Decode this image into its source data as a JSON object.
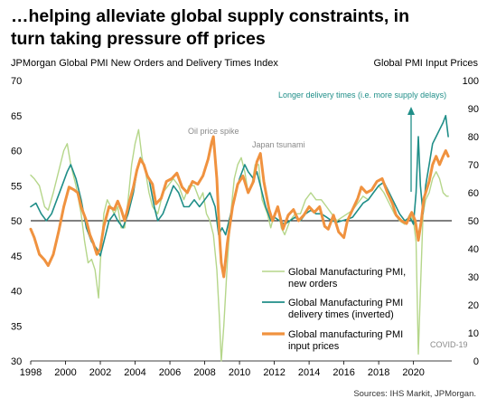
{
  "headline": {
    "line1": "…helping alleviate global supply constraints, in",
    "line2": "turn taking pressure off prices"
  },
  "left_axis_title": "JPMorgan Global PMI New Orders and Delivery Times Index",
  "right_axis_title": "Global PMI Input Prices",
  "source": "Sources: IHS Markit, JPMorgan.",
  "colors": {
    "new_orders": "#b5d68a",
    "delivery_times": "#1f8e88",
    "input_prices": "#f0923f",
    "annotation_grey": "#8a8a8a",
    "annotation_teal": "#1f8e88"
  },
  "chart_data": {
    "type": "line",
    "x_ticks": [
      "1998",
      "2000",
      "2002",
      "2004",
      "2006",
      "2008",
      "2010",
      "2012",
      "2014",
      "2016",
      "2018",
      "2020"
    ],
    "xlim": [
      1998,
      2022.2
    ],
    "ylim_left": [
      30,
      70
    ],
    "yticks_left": [
      "30",
      "35",
      "40",
      "45",
      "50",
      "55",
      "60",
      "65",
      "70"
    ],
    "ylim_right": [
      0,
      100
    ],
    "yticks_right": [
      "0",
      "10",
      "20",
      "30",
      "40",
      "50",
      "60",
      "70",
      "80",
      "90",
      "100"
    ],
    "reference_line": 50,
    "annotations": {
      "oil": "Oil price spike",
      "japan": "Japan tsunami",
      "longer": "Longer delivery times  (i.e. more supply delays)",
      "covid": "COVID-19"
    },
    "legend": [
      {
        "label1": "Global Manufacturing PMI,",
        "label2": "new orders"
      },
      {
        "label1": "Global Manufacturing PMI",
        "label2": "delivery times (inverted)"
      },
      {
        "label1": "Global manufacturing PMI",
        "label2": "input prices"
      }
    ],
    "series": [
      {
        "name": "Global Manufacturing PMI, new orders",
        "axis": "left",
        "points": [
          [
            1998.0,
            56.5
          ],
          [
            1998.2,
            56
          ],
          [
            1998.5,
            55
          ],
          [
            1998.8,
            52
          ],
          [
            1999.0,
            51.5
          ],
          [
            1999.3,
            54
          ],
          [
            1999.6,
            57
          ],
          [
            1999.9,
            60
          ],
          [
            2000.1,
            61
          ],
          [
            2000.3,
            58
          ],
          [
            2000.6,
            55
          ],
          [
            2000.9,
            51
          ],
          [
            2001.1,
            47
          ],
          [
            2001.3,
            44
          ],
          [
            2001.5,
            44.5
          ],
          [
            2001.7,
            43
          ],
          [
            2001.9,
            39
          ],
          [
            2002.0,
            44
          ],
          [
            2002.2,
            51
          ],
          [
            2002.4,
            53
          ],
          [
            2002.6,
            52
          ],
          [
            2002.8,
            51
          ],
          [
            2003.0,
            52
          ],
          [
            2003.2,
            49
          ],
          [
            2003.4,
            49
          ],
          [
            2003.6,
            53
          ],
          [
            2003.8,
            58
          ],
          [
            2004.0,
            61
          ],
          [
            2004.2,
            63
          ],
          [
            2004.4,
            59
          ],
          [
            2004.6,
            57
          ],
          [
            2004.8,
            54
          ],
          [
            2005.0,
            52
          ],
          [
            2005.3,
            51
          ],
          [
            2005.6,
            54
          ],
          [
            2005.9,
            55
          ],
          [
            2006.2,
            56
          ],
          [
            2006.5,
            55
          ],
          [
            2006.8,
            53
          ],
          [
            2007.1,
            55
          ],
          [
            2007.4,
            55
          ],
          [
            2007.7,
            53
          ],
          [
            2007.9,
            54
          ],
          [
            2008.1,
            51
          ],
          [
            2008.3,
            50
          ],
          [
            2008.5,
            48
          ],
          [
            2008.7,
            43
          ],
          [
            2008.85,
            36
          ],
          [
            2008.95,
            30
          ],
          [
            2009.1,
            35
          ],
          [
            2009.3,
            44
          ],
          [
            2009.5,
            51
          ],
          [
            2009.7,
            56
          ],
          [
            2009.9,
            58
          ],
          [
            2010.1,
            59
          ],
          [
            2010.3,
            57
          ],
          [
            2010.5,
            54
          ],
          [
            2010.7,
            55
          ],
          [
            2010.9,
            58
          ],
          [
            2011.1,
            58
          ],
          [
            2011.3,
            53
          ],
          [
            2011.6,
            51
          ],
          [
            2011.8,
            49
          ],
          [
            2012.0,
            51
          ],
          [
            2012.2,
            52
          ],
          [
            2012.4,
            49
          ],
          [
            2012.6,
            48
          ],
          [
            2012.9,
            50
          ],
          [
            2013.2,
            51
          ],
          [
            2013.5,
            51
          ],
          [
            2013.8,
            53
          ],
          [
            2014.1,
            54
          ],
          [
            2014.4,
            53
          ],
          [
            2014.7,
            53
          ],
          [
            2015.0,
            52
          ],
          [
            2015.3,
            51
          ],
          [
            2015.6,
            50
          ],
          [
            2015.9,
            50.5
          ],
          [
            2016.2,
            51
          ],
          [
            2016.5,
            51.5
          ],
          [
            2016.8,
            52.5
          ],
          [
            2017.1,
            53.5
          ],
          [
            2017.4,
            53
          ],
          [
            2017.7,
            54
          ],
          [
            2018.0,
            55
          ],
          [
            2018.3,
            54
          ],
          [
            2018.6,
            52.5
          ],
          [
            2018.9,
            51
          ],
          [
            2019.2,
            50
          ],
          [
            2019.5,
            49.5
          ],
          [
            2019.8,
            51
          ],
          [
            2020.0,
            50
          ],
          [
            2020.15,
            47
          ],
          [
            2020.28,
            31
          ],
          [
            2020.4,
            40
          ],
          [
            2020.55,
            51
          ],
          [
            2020.7,
            53
          ],
          [
            2020.9,
            54
          ],
          [
            2021.1,
            56
          ],
          [
            2021.3,
            57
          ],
          [
            2021.5,
            56
          ],
          [
            2021.7,
            54
          ],
          [
            2021.9,
            53.5
          ],
          [
            2022.0,
            53.5
          ]
        ]
      },
      {
        "name": "Global Manufacturing PMI delivery times (inverted)",
        "axis": "left",
        "points": [
          [
            1998.0,
            52
          ],
          [
            1998.3,
            52.5
          ],
          [
            1998.6,
            51
          ],
          [
            1998.9,
            50
          ],
          [
            1999.2,
            51
          ],
          [
            1999.5,
            53
          ],
          [
            1999.8,
            55
          ],
          [
            2000.1,
            57
          ],
          [
            2000.3,
            58
          ],
          [
            2000.6,
            56
          ],
          [
            2000.9,
            53
          ],
          [
            2001.2,
            49
          ],
          [
            2001.5,
            47
          ],
          [
            2001.8,
            46
          ],
          [
            2002.0,
            45
          ],
          [
            2002.2,
            47
          ],
          [
            2002.5,
            50
          ],
          [
            2002.8,
            51
          ],
          [
            2003.0,
            50
          ],
          [
            2003.3,
            49
          ],
          [
            2003.6,
            51
          ],
          [
            2003.9,
            54
          ],
          [
            2004.1,
            57
          ],
          [
            2004.3,
            59
          ],
          [
            2004.5,
            58
          ],
          [
            2004.8,
            56
          ],
          [
            2005.1,
            52
          ],
          [
            2005.3,
            50
          ],
          [
            2005.6,
            51
          ],
          [
            2005.9,
            53
          ],
          [
            2006.2,
            55
          ],
          [
            2006.5,
            54
          ],
          [
            2006.8,
            52
          ],
          [
            2007.1,
            52
          ],
          [
            2007.4,
            53
          ],
          [
            2007.7,
            52
          ],
          [
            2008.0,
            53
          ],
          [
            2008.3,
            54
          ],
          [
            2008.6,
            52
          ],
          [
            2008.8,
            48
          ],
          [
            2009.0,
            49
          ],
          [
            2009.2,
            48
          ],
          [
            2009.4,
            50
          ],
          [
            2009.7,
            53
          ],
          [
            2010.0,
            56
          ],
          [
            2010.3,
            58
          ],
          [
            2010.5,
            57
          ],
          [
            2010.8,
            56
          ],
          [
            2011.0,
            57
          ],
          [
            2011.2,
            55
          ],
          [
            2011.5,
            52
          ],
          [
            2011.8,
            50
          ],
          [
            2012.0,
            50.5
          ],
          [
            2012.3,
            50
          ],
          [
            2012.6,
            49.5
          ],
          [
            2012.9,
            50
          ],
          [
            2013.2,
            50.5
          ],
          [
            2013.5,
            50
          ],
          [
            2013.8,
            51
          ],
          [
            2014.1,
            51.5
          ],
          [
            2014.4,
            51
          ],
          [
            2014.7,
            51
          ],
          [
            2015.0,
            50.5
          ],
          [
            2015.3,
            50
          ],
          [
            2015.6,
            49.8
          ],
          [
            2015.9,
            50
          ],
          [
            2016.2,
            50.2
          ],
          [
            2016.5,
            50.5
          ],
          [
            2016.8,
            51.5
          ],
          [
            2017.1,
            52.5
          ],
          [
            2017.4,
            53
          ],
          [
            2017.7,
            54
          ],
          [
            2018.0,
            55
          ],
          [
            2018.3,
            55.5
          ],
          [
            2018.6,
            54
          ],
          [
            2018.9,
            52.5
          ],
          [
            2019.2,
            51
          ],
          [
            2019.5,
            50
          ],
          [
            2019.8,
            50.5
          ],
          [
            2020.0,
            49.5
          ],
          [
            2020.15,
            54
          ],
          [
            2020.28,
            62
          ],
          [
            2020.4,
            55
          ],
          [
            2020.55,
            51
          ],
          [
            2020.7,
            55
          ],
          [
            2020.9,
            58
          ],
          [
            2021.1,
            61
          ],
          [
            2021.3,
            62
          ],
          [
            2021.5,
            63
          ],
          [
            2021.7,
            64
          ],
          [
            2021.85,
            65
          ],
          [
            2022.0,
            62
          ]
        ]
      },
      {
        "name": "Global manufacturing PMI input prices",
        "axis": "right",
        "points": [
          [
            1998.0,
            47
          ],
          [
            1998.2,
            44
          ],
          [
            1998.5,
            38
          ],
          [
            1998.8,
            36
          ],
          [
            1999.0,
            34
          ],
          [
            1999.3,
            38
          ],
          [
            1999.6,
            46
          ],
          [
            1999.9,
            55
          ],
          [
            2000.2,
            62
          ],
          [
            2000.5,
            61
          ],
          [
            2000.7,
            60
          ],
          [
            2000.9,
            55
          ],
          [
            2001.2,
            50
          ],
          [
            2001.4,
            45
          ],
          [
            2001.6,
            42
          ],
          [
            2001.8,
            38
          ],
          [
            2002.0,
            40
          ],
          [
            2002.2,
            48
          ],
          [
            2002.5,
            55
          ],
          [
            2002.8,
            54
          ],
          [
            2003.0,
            57
          ],
          [
            2003.2,
            54
          ],
          [
            2003.4,
            50
          ],
          [
            2003.6,
            55
          ],
          [
            2003.9,
            62
          ],
          [
            2004.1,
            68
          ],
          [
            2004.3,
            72
          ],
          [
            2004.5,
            70
          ],
          [
            2004.7,
            66
          ],
          [
            2005.0,
            63
          ],
          [
            2005.2,
            56
          ],
          [
            2005.5,
            58
          ],
          [
            2005.8,
            64
          ],
          [
            2006.1,
            65
          ],
          [
            2006.4,
            67
          ],
          [
            2006.7,
            62
          ],
          [
            2007.0,
            60
          ],
          [
            2007.3,
            64
          ],
          [
            2007.6,
            63
          ],
          [
            2007.9,
            66
          ],
          [
            2008.2,
            72
          ],
          [
            2008.4,
            78
          ],
          [
            2008.5,
            80
          ],
          [
            2008.7,
            65
          ],
          [
            2008.85,
            45
          ],
          [
            2008.95,
            35
          ],
          [
            2009.1,
            30
          ],
          [
            2009.3,
            42
          ],
          [
            2009.6,
            55
          ],
          [
            2009.9,
            63
          ],
          [
            2010.2,
            66
          ],
          [
            2010.5,
            60
          ],
          [
            2010.8,
            64
          ],
          [
            2011.0,
            71
          ],
          [
            2011.2,
            74
          ],
          [
            2011.4,
            64
          ],
          [
            2011.7,
            54
          ],
          [
            2011.9,
            50
          ],
          [
            2012.2,
            55
          ],
          [
            2012.5,
            47
          ],
          [
            2012.8,
            52
          ],
          [
            2013.1,
            54
          ],
          [
            2013.4,
            50
          ],
          [
            2013.7,
            52
          ],
          [
            2014.0,
            55
          ],
          [
            2014.3,
            53
          ],
          [
            2014.6,
            55
          ],
          [
            2014.9,
            48
          ],
          [
            2015.1,
            47
          ],
          [
            2015.4,
            52
          ],
          [
            2015.7,
            46
          ],
          [
            2016.0,
            44
          ],
          [
            2016.2,
            50
          ],
          [
            2016.5,
            54
          ],
          [
            2016.8,
            58
          ],
          [
            2017.0,
            62
          ],
          [
            2017.3,
            60
          ],
          [
            2017.6,
            61
          ],
          [
            2017.9,
            64
          ],
          [
            2018.2,
            65
          ],
          [
            2018.5,
            60
          ],
          [
            2018.8,
            56
          ],
          [
            2019.0,
            52
          ],
          [
            2019.3,
            50
          ],
          [
            2019.6,
            49
          ],
          [
            2019.9,
            53
          ],
          [
            2020.1,
            50
          ],
          [
            2020.28,
            43
          ],
          [
            2020.45,
            50
          ],
          [
            2020.6,
            58
          ],
          [
            2020.9,
            64
          ],
          [
            2021.1,
            70
          ],
          [
            2021.3,
            73
          ],
          [
            2021.5,
            70
          ],
          [
            2021.7,
            73
          ],
          [
            2021.85,
            75
          ],
          [
            2022.0,
            73
          ]
        ]
      }
    ]
  }
}
